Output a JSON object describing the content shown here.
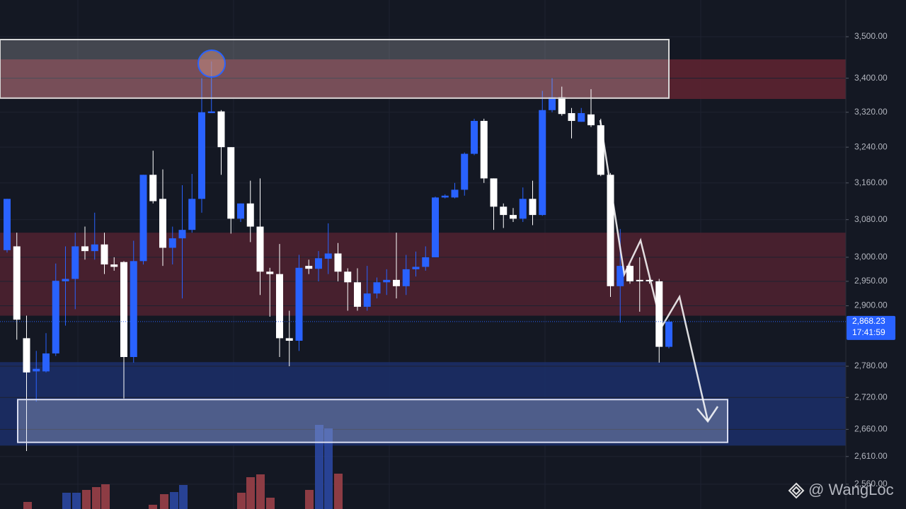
{
  "chart_data": {
    "type": "candlestick",
    "log_scale": true,
    "grid": true,
    "up_color": "#2962ff",
    "down_color": "#ffffff",
    "open": [
      3015,
      3023,
      2835,
      2770,
      2770,
      2805,
      2950,
      2955,
      3023,
      3013,
      3027,
      2985,
      2990,
      2798,
      2992,
      3178,
      3125,
      3020,
      3040,
      3058,
      3125,
      3318,
      3322,
      3240,
      3082,
      3115,
      3065,
      2970,
      2965,
      2835,
      2830,
      2982,
      2976,
      2997,
      3008,
      2970,
      2948,
      2898,
      2925,
      2948,
      2953,
      2940,
      2975,
      2980,
      3000,
      3128,
      3128,
      3145,
      3225,
      3300,
      3170,
      3108,
      3090,
      3082,
      3125,
      3090,
      3325,
      3355,
      3318,
      3298,
      3315,
      3290,
      3178,
      2940,
      2982,
      2953,
      2953,
      2950,
      2818
    ],
    "high": [
      3125,
      3052,
      2880,
      2810,
      2845,
      2987,
      3023,
      3052,
      3065,
      3095,
      3052,
      3000,
      2992,
      3035,
      3178,
      3232,
      3190,
      3065,
      3155,
      3180,
      3400,
      3440,
      3325,
      3240,
      3115,
      3165,
      3170,
      2978,
      3028,
      2890,
      3005,
      2995,
      3013,
      3072,
      3030,
      2977,
      2977,
      2982,
      2958,
      2975,
      3052,
      3005,
      3012,
      3023,
      3130,
      3135,
      3160,
      3228,
      3305,
      3305,
      3170,
      3115,
      3105,
      3150,
      3165,
      3370,
      3400,
      3380,
      3330,
      3330,
      3374,
      3305,
      3182,
      3060,
      2985,
      3000,
      2955,
      2955,
      2872
    ],
    "low": [
      3010,
      2832,
      2620,
      2712,
      2768,
      2800,
      2860,
      2893,
      2995,
      2995,
      2965,
      2972,
      2718,
      2787,
      2985,
      3115,
      2982,
      2985,
      2915,
      3052,
      3095,
      3318,
      3178,
      3050,
      3075,
      3032,
      2922,
      2878,
      2798,
      2780,
      2810,
      2965,
      2950,
      2965,
      2950,
      2890,
      2890,
      2890,
      2915,
      2922,
      2915,
      2922,
      2960,
      2972,
      3000,
      3126,
      3126,
      3132,
      3222,
      3160,
      3058,
      3062,
      3075,
      3075,
      3068,
      3088,
      3320,
      3312,
      3260,
      3298,
      3286,
      3175,
      2918,
      2866,
      2945,
      2888,
      2945,
      2787,
      2815
    ],
    "close": [
      3125,
      2872,
      2768,
      2775,
      2805,
      2951,
      2955,
      3023,
      3013,
      3027,
      2985,
      2980,
      2798,
      2992,
      3178,
      3120,
      3020,
      3040,
      3058,
      3125,
      3320,
      3322,
      3240,
      3082,
      3115,
      3065,
      2970,
      2965,
      2835,
      2830,
      2978,
      2976,
      2998,
      3008,
      2970,
      2948,
      2898,
      2925,
      2948,
      2953,
      2940,
      2975,
      2980,
      3000,
      3128,
      3132,
      3145,
      3225,
      3300,
      3170,
      3108,
      3090,
      3082,
      3125,
      3090,
      3325,
      3355,
      3316,
      3300,
      3318,
      3290,
      3178,
      2940,
      2982,
      2950,
      2950,
      2950,
      2818,
      2868
    ],
    "ylim": [
      2516,
      3591
    ],
    "yticks": [
      {
        "value": 3500,
        "label": "3,500.00"
      },
      {
        "value": 3400,
        "label": "3,400.00"
      },
      {
        "value": 3320,
        "label": "3,320.00"
      },
      {
        "value": 3240,
        "label": "3,240.00"
      },
      {
        "value": 3160,
        "label": "3,160.00"
      },
      {
        "value": 3080,
        "label": "3,080.00"
      },
      {
        "value": 3000,
        "label": "3,000.00"
      },
      {
        "value": 2950,
        "label": "2,950.00"
      },
      {
        "value": 2900,
        "label": "2,900.00"
      },
      {
        "value": 2780,
        "label": "2,780.00"
      },
      {
        "value": 2720,
        "label": "2,720.00"
      },
      {
        "value": 2660,
        "label": "2,660.00"
      },
      {
        "value": 2610,
        "label": "2,610.00"
      },
      {
        "value": 2560,
        "label": "2,560.00"
      }
    ],
    "zones": [
      {
        "high": 3445,
        "low": 3351,
        "color": "#5c2431"
      },
      {
        "high": 3052,
        "low": 2880,
        "color": "#4d2130"
      },
      {
        "high": 2788,
        "low": 2630,
        "color": "#1b2d66"
      }
    ],
    "boxes": [
      {
        "high": 3493,
        "low": 3353
      },
      {
        "high": 2716,
        "low": 2636
      }
    ],
    "last_price": {
      "value": 2868.23,
      "label": "2,868.23"
    },
    "countdown": "17:41:59",
    "watermark": "@ WangLoc"
  }
}
